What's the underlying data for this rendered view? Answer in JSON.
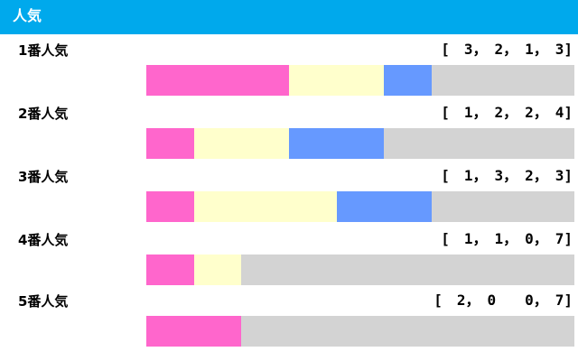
{
  "header": {
    "title": "人気"
  },
  "colors": {
    "header_bg": "#00a9ec",
    "first": "#ff66cc",
    "second": "#ffffcc",
    "third": "#6699ff",
    "other": "#d3d3d3"
  },
  "chart_data": {
    "type": "bar",
    "stacked": true,
    "orientation": "horizontal",
    "title": "人気",
    "categories": [
      "1番人気",
      "2番人気",
      "3番人気",
      "4番人気",
      "5番人気"
    ],
    "records": [
      "[　3，　2，　1，　3]",
      "[　1，　2，　2，　4]",
      "[　1，　3，　2，　3]",
      "[　1，　1，　0，　7]",
      "[　2，　0　　0，　7]"
    ],
    "series": [
      {
        "values": [
          3,
          1,
          1,
          1,
          2
        ],
        "color": "#ff66cc"
      },
      {
        "values": [
          2,
          2,
          3,
          1,
          0
        ],
        "color": "#ffffcc"
      },
      {
        "values": [
          1,
          2,
          2,
          0,
          0
        ],
        "color": "#6699ff"
      },
      {
        "values": [
          3,
          4,
          3,
          7,
          7
        ],
        "color": "#d3d3d3"
      }
    ],
    "total": 9,
    "legend": "none",
    "grid": false
  }
}
